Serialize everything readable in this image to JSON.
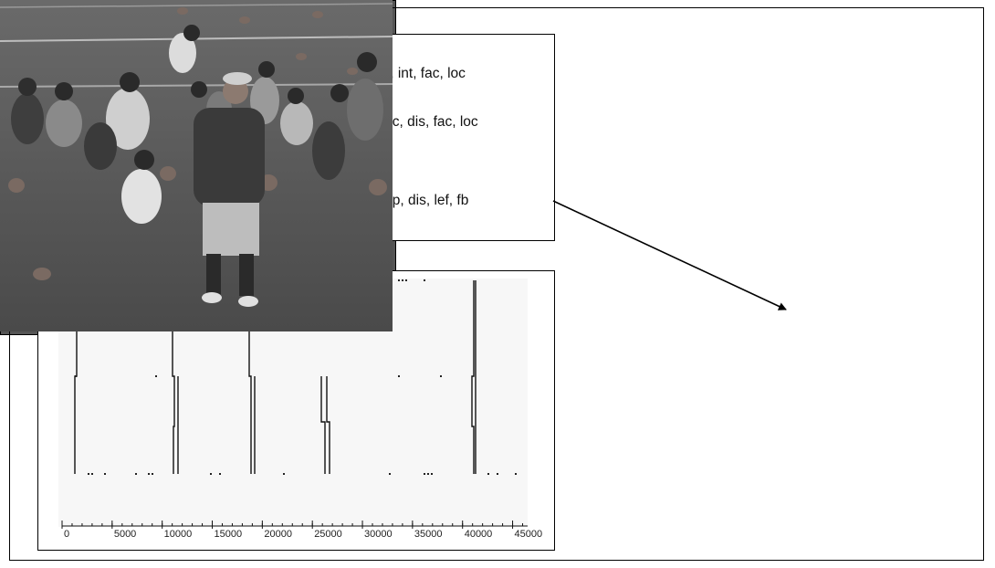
{
  "dendrogram": {
    "leaves": [
      "(01) alu, ind, c, int, fac, loc",
      "(02) pro, mac, c, dis, fac, loc",
      "(03) pro, mac, p, dis, lef, fb"
    ]
  },
  "timeline": {
    "axis": {
      "min": 0,
      "max": 46500,
      "tick_labels": [
        "0",
        "5000",
        "10000",
        "15000",
        "20000",
        "25000",
        "30000",
        "35000",
        "40000",
        "45000"
      ],
      "tick_values": [
        0,
        5000,
        10000,
        15000,
        20000,
        25000,
        30000,
        35000,
        40000,
        45000
      ]
    }
  },
  "photo": {
    "description_icon": "photo-icon"
  },
  "colors": {
    "line": "#111111",
    "panel_border": "#000000"
  }
}
